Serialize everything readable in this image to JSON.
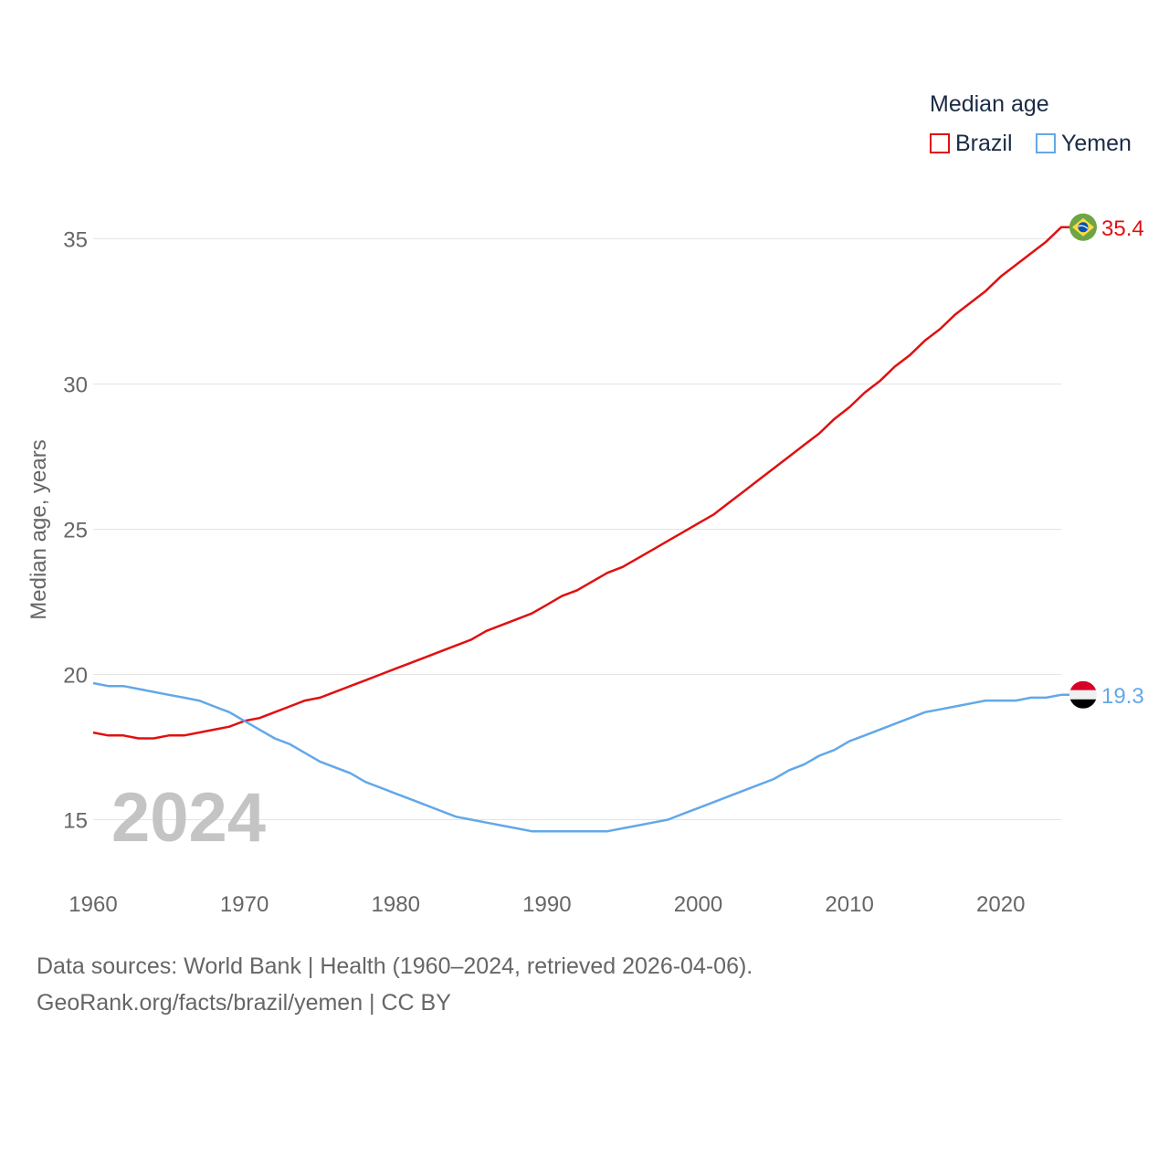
{
  "legend": {
    "title": "Median age",
    "items": [
      {
        "label": "Brazil",
        "color": "#e01010"
      },
      {
        "label": "Yemen",
        "color": "#62a8e8"
      }
    ]
  },
  "year_label": "2024",
  "footer": {
    "line1": "Data sources: World Bank | Health (1960–2024, retrieved 2026-04-06).",
    "line2": "GeoRank.org/facts/brazil/yemen | CC BY"
  },
  "chart_data": {
    "type": "line",
    "title": "Median age",
    "xlabel": "",
    "ylabel": "Median age, years",
    "xlim": [
      1960,
      2024
    ],
    "ylim": [
      13,
      37
    ],
    "x_ticks": [
      1960,
      1970,
      1980,
      1990,
      2000,
      2010,
      2020
    ],
    "y_ticks": [
      15,
      20,
      25,
      30,
      35
    ],
    "grid": true,
    "legend_position": "top-right",
    "series": [
      {
        "name": "Brazil",
        "color": "#e01010",
        "end_label": "35.4",
        "flag": "brazil-flag",
        "points": [
          [
            1960,
            18.0
          ],
          [
            1961,
            17.9
          ],
          [
            1962,
            17.9
          ],
          [
            1963,
            17.8
          ],
          [
            1964,
            17.8
          ],
          [
            1965,
            17.9
          ],
          [
            1966,
            17.9
          ],
          [
            1967,
            18.0
          ],
          [
            1968,
            18.1
          ],
          [
            1969,
            18.2
          ],
          [
            1970,
            18.4
          ],
          [
            1971,
            18.5
          ],
          [
            1972,
            18.7
          ],
          [
            1973,
            18.9
          ],
          [
            1974,
            19.1
          ],
          [
            1975,
            19.2
          ],
          [
            1976,
            19.4
          ],
          [
            1977,
            19.6
          ],
          [
            1978,
            19.8
          ],
          [
            1979,
            20.0
          ],
          [
            1980,
            20.2
          ],
          [
            1981,
            20.4
          ],
          [
            1982,
            20.6
          ],
          [
            1983,
            20.8
          ],
          [
            1984,
            21.0
          ],
          [
            1985,
            21.2
          ],
          [
            1986,
            21.5
          ],
          [
            1987,
            21.7
          ],
          [
            1988,
            21.9
          ],
          [
            1989,
            22.1
          ],
          [
            1990,
            22.4
          ],
          [
            1991,
            22.7
          ],
          [
            1992,
            22.9
          ],
          [
            1993,
            23.2
          ],
          [
            1994,
            23.5
          ],
          [
            1995,
            23.7
          ],
          [
            1996,
            24.0
          ],
          [
            1997,
            24.3
          ],
          [
            1998,
            24.6
          ],
          [
            1999,
            24.9
          ],
          [
            2000,
            25.2
          ],
          [
            2001,
            25.5
          ],
          [
            2002,
            25.9
          ],
          [
            2003,
            26.3
          ],
          [
            2004,
            26.7
          ],
          [
            2005,
            27.1
          ],
          [
            2006,
            27.5
          ],
          [
            2007,
            27.9
          ],
          [
            2008,
            28.3
          ],
          [
            2009,
            28.8
          ],
          [
            2010,
            29.2
          ],
          [
            2011,
            29.7
          ],
          [
            2012,
            30.1
          ],
          [
            2013,
            30.6
          ],
          [
            2014,
            31.0
          ],
          [
            2015,
            31.5
          ],
          [
            2016,
            31.9
          ],
          [
            2017,
            32.4
          ],
          [
            2018,
            32.8
          ],
          [
            2019,
            33.2
          ],
          [
            2020,
            33.7
          ],
          [
            2021,
            34.1
          ],
          [
            2022,
            34.5
          ],
          [
            2023,
            34.9
          ],
          [
            2024,
            35.4
          ]
        ]
      },
      {
        "name": "Yemen",
        "color": "#62a8e8",
        "end_label": "19.3",
        "flag": "yemen-flag",
        "points": [
          [
            1960,
            19.7
          ],
          [
            1961,
            19.6
          ],
          [
            1962,
            19.6
          ],
          [
            1963,
            19.5
          ],
          [
            1964,
            19.4
          ],
          [
            1965,
            19.3
          ],
          [
            1966,
            19.2
          ],
          [
            1967,
            19.1
          ],
          [
            1968,
            18.9
          ],
          [
            1969,
            18.7
          ],
          [
            1970,
            18.4
          ],
          [
            1971,
            18.1
          ],
          [
            1972,
            17.8
          ],
          [
            1973,
            17.6
          ],
          [
            1974,
            17.3
          ],
          [
            1975,
            17.0
          ],
          [
            1976,
            16.8
          ],
          [
            1977,
            16.6
          ],
          [
            1978,
            16.3
          ],
          [
            1979,
            16.1
          ],
          [
            1980,
            15.9
          ],
          [
            1981,
            15.7
          ],
          [
            1982,
            15.5
          ],
          [
            1983,
            15.3
          ],
          [
            1984,
            15.1
          ],
          [
            1985,
            15.0
          ],
          [
            1986,
            14.9
          ],
          [
            1987,
            14.8
          ],
          [
            1988,
            14.7
          ],
          [
            1989,
            14.6
          ],
          [
            1990,
            14.6
          ],
          [
            1991,
            14.6
          ],
          [
            1992,
            14.6
          ],
          [
            1993,
            14.6
          ],
          [
            1994,
            14.6
          ],
          [
            1995,
            14.7
          ],
          [
            1996,
            14.8
          ],
          [
            1997,
            14.9
          ],
          [
            1998,
            15.0
          ],
          [
            1999,
            15.2
          ],
          [
            2000,
            15.4
          ],
          [
            2001,
            15.6
          ],
          [
            2002,
            15.8
          ],
          [
            2003,
            16.0
          ],
          [
            2004,
            16.2
          ],
          [
            2005,
            16.4
          ],
          [
            2006,
            16.7
          ],
          [
            2007,
            16.9
          ],
          [
            2008,
            17.2
          ],
          [
            2009,
            17.4
          ],
          [
            2010,
            17.7
          ],
          [
            2011,
            17.9
          ],
          [
            2012,
            18.1
          ],
          [
            2013,
            18.3
          ],
          [
            2014,
            18.5
          ],
          [
            2015,
            18.7
          ],
          [
            2016,
            18.8
          ],
          [
            2017,
            18.9
          ],
          [
            2018,
            19.0
          ],
          [
            2019,
            19.1
          ],
          [
            2020,
            19.1
          ],
          [
            2021,
            19.1
          ],
          [
            2022,
            19.2
          ],
          [
            2023,
            19.2
          ],
          [
            2024,
            19.3
          ]
        ]
      }
    ]
  }
}
